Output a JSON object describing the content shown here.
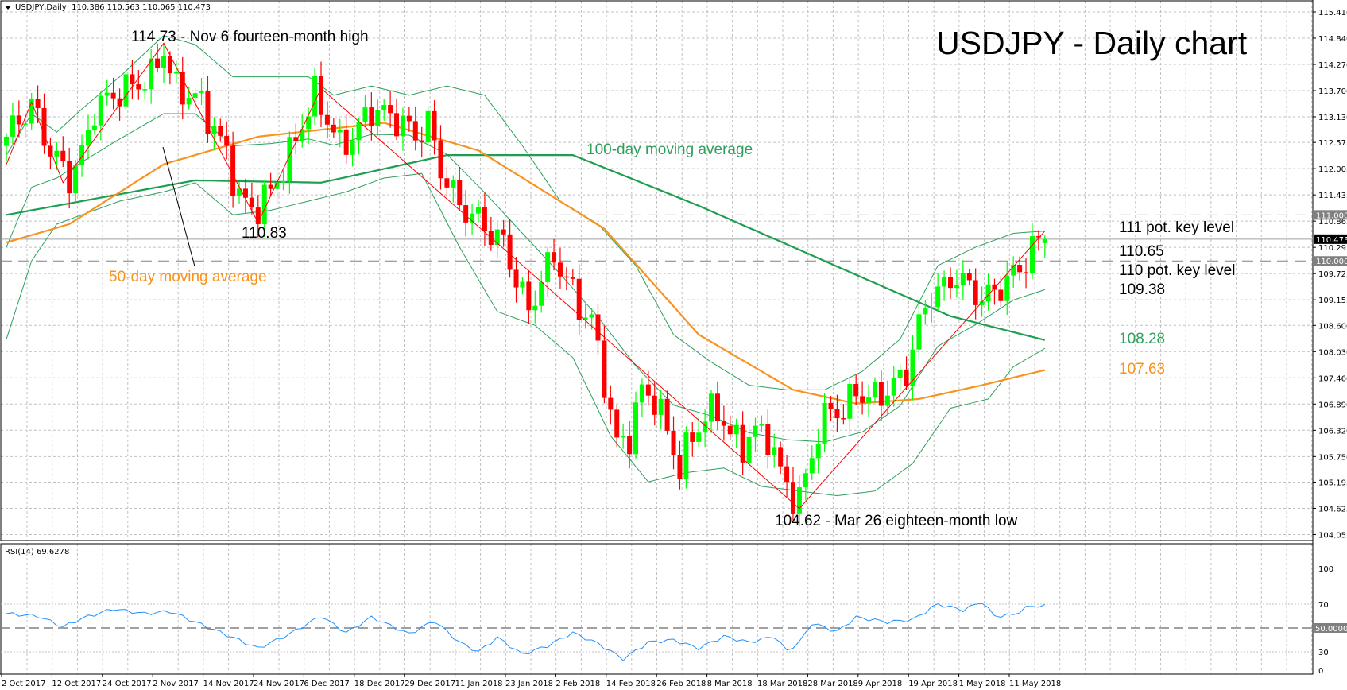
{
  "header": {
    "symbol": "USDJPY,Daily",
    "ohlc": "110.386 110.563 110.065 110.473"
  },
  "rsi_header": "RSI(14) 69.6278",
  "annotations": {
    "title": "USDJPY - Daily chart",
    "high": "114.73 - Nov 6 fourteen-month high",
    "low": "104.62 - Mar 26 eighteen-month low",
    "swing_low": "110.83",
    "ma100_label": "100-day moving average",
    "ma50_label": "50-day moving average",
    "key111": "111 pot. key level",
    "bb_upper": "110.65",
    "key110": "110 pot. key level",
    "bb_mid": "109.38",
    "ma100_value": "108.28",
    "ma50_value": "107.63"
  },
  "colors": {
    "up": "#00ff00",
    "down": "#ff0000",
    "bb": "#2ca05a",
    "ma100": "#1e9e50",
    "ma50": "#f7931e",
    "rsi": "#1e90ff",
    "zigzag": "#ff0000",
    "grid": "#c0c0c0"
  },
  "chart_data": {
    "type": "candlestick",
    "title": "USDJPY - Daily chart",
    "ylim": [
      104.055,
      115.41
    ],
    "y_ticks": [
      "115.410",
      "114.840",
      "114.270",
      "113.700",
      "113.130",
      "112.575",
      "112.005",
      "111.435",
      "110.865",
      "110.295",
      "109.725",
      "109.155",
      "108.600",
      "108.030",
      "107.460",
      "106.890",
      "106.320",
      "105.750",
      "105.195",
      "104.625",
      "104.055"
    ],
    "x_ticks": [
      "2 Oct 2017",
      "12 Oct 2017",
      "24 Oct 2017",
      "2 Nov 2017",
      "14 Nov 2017",
      "24 Nov 2017",
      "6 Dec 2017",
      "18 Dec 2017",
      "29 Dec 2017",
      "11 Jan 2018",
      "23 Jan 2018",
      "2 Feb 2018",
      "14 Feb 2018",
      "26 Feb 2018",
      "8 Mar 2018",
      "18 Mar 2018",
      "28 Mar 2018",
      "9 Apr 2018",
      "19 Apr 2018",
      "1 May 2018",
      "11 May 2018"
    ],
    "bars": 166,
    "close_anchors": [
      [
        0,
        112.7
      ],
      [
        4,
        113.4
      ],
      [
        7,
        112.4
      ],
      [
        10,
        111.8
      ],
      [
        12,
        112.3
      ],
      [
        14,
        113.3
      ],
      [
        17,
        113.6
      ],
      [
        20,
        113.8
      ],
      [
        23,
        114.0
      ],
      [
        25,
        114.6
      ],
      [
        27,
        113.7
      ],
      [
        30,
        113.6
      ],
      [
        33,
        112.9
      ],
      [
        35,
        112.3
      ],
      [
        37,
        111.4
      ],
      [
        39,
        111.1
      ],
      [
        40,
        111.2
      ],
      [
        42,
        111.5
      ],
      [
        45,
        112.3
      ],
      [
        47,
        113.0
      ],
      [
        49,
        113.6
      ],
      [
        51,
        113.1
      ],
      [
        53,
        112.5
      ],
      [
        55,
        112.7
      ],
      [
        58,
        113.3
      ],
      [
        60,
        113.2
      ],
      [
        63,
        113.0
      ],
      [
        65,
        112.7
      ],
      [
        67,
        113.0
      ],
      [
        69,
        112.0
      ],
      [
        72,
        111.2
      ],
      [
        75,
        110.9
      ],
      [
        77,
        110.6
      ],
      [
        79,
        110.4
      ],
      [
        81,
        109.6
      ],
      [
        83,
        108.9
      ],
      [
        85,
        109.6
      ],
      [
        87,
        110.1
      ],
      [
        89,
        109.6
      ],
      [
        91,
        109.0
      ],
      [
        93,
        108.7
      ],
      [
        95,
        107.4
      ],
      [
        97,
        106.0
      ],
      [
        99,
        106.2
      ],
      [
        101,
        107.2
      ],
      [
        103,
        107.0
      ],
      [
        105,
        106.3
      ],
      [
        107,
        105.5
      ],
      [
        109,
        106.2
      ],
      [
        111,
        106.6
      ],
      [
        113,
        106.8
      ],
      [
        115,
        106.2
      ],
      [
        117,
        106.0
      ],
      [
        119,
        106.3
      ],
      [
        121,
        106.2
      ],
      [
        123,
        105.4
      ],
      [
        125,
        104.9
      ],
      [
        126,
        104.8
      ],
      [
        127,
        105.3
      ],
      [
        129,
        106.3
      ],
      [
        131,
        106.8
      ],
      [
        133,
        106.7
      ],
      [
        135,
        107.2
      ],
      [
        137,
        107.0
      ],
      [
        139,
        107.1
      ],
      [
        141,
        107.3
      ],
      [
        143,
        107.6
      ],
      [
        145,
        108.6
      ],
      [
        147,
        109.3
      ],
      [
        149,
        109.4
      ],
      [
        151,
        109.7
      ],
      [
        153,
        109.4
      ],
      [
        155,
        109.2
      ],
      [
        157,
        109.3
      ],
      [
        159,
        109.6
      ],
      [
        161,
        109.8
      ],
      [
        163,
        110.3
      ],
      [
        165,
        110.473
      ]
    ],
    "last_candle": {
      "open": 110.386,
      "high": 110.563,
      "low": 110.065,
      "close": 110.473
    },
    "ma100": [
      [
        0,
        111.0
      ],
      [
        30,
        111.75
      ],
      [
        50,
        111.7
      ],
      [
        70,
        112.3
      ],
      [
        90,
        112.3
      ],
      [
        110,
        111.2
      ],
      [
        130,
        110.0
      ],
      [
        150,
        108.8
      ],
      [
        165,
        108.28
      ]
    ],
    "ma50": [
      [
        0,
        110.4
      ],
      [
        10,
        110.8
      ],
      [
        25,
        112.1
      ],
      [
        40,
        112.7
      ],
      [
        60,
        113.0
      ],
      [
        75,
        112.4
      ],
      [
        95,
        110.7
      ],
      [
        110,
        108.4
      ],
      [
        125,
        107.2
      ],
      [
        135,
        106.9
      ],
      [
        145,
        107.0
      ],
      [
        155,
        107.3
      ],
      [
        165,
        107.63
      ]
    ],
    "bb_upper": [
      [
        0,
        112.3
      ],
      [
        4,
        113.2
      ],
      [
        8,
        112.8
      ],
      [
        12,
        113.3
      ],
      [
        18,
        114.0
      ],
      [
        25,
        114.9
      ],
      [
        30,
        114.7
      ],
      [
        36,
        114.0
      ],
      [
        42,
        114.0
      ],
      [
        48,
        114.0
      ],
      [
        52,
        113.6
      ],
      [
        58,
        113.8
      ],
      [
        64,
        113.6
      ],
      [
        70,
        113.8
      ],
      [
        76,
        113.6
      ],
      [
        82,
        112.5
      ],
      [
        88,
        111.3
      ],
      [
        94,
        110.8
      ],
      [
        100,
        109.9
      ],
      [
        106,
        108.4
      ],
      [
        112,
        107.8
      ],
      [
        118,
        107.3
      ],
      [
        124,
        107.2
      ],
      [
        130,
        107.2
      ],
      [
        136,
        107.6
      ],
      [
        142,
        108.3
      ],
      [
        148,
        109.9
      ],
      [
        154,
        110.3
      ],
      [
        160,
        110.6
      ],
      [
        165,
        110.65
      ]
    ],
    "bb_lower": [
      [
        0,
        108.3
      ],
      [
        4,
        110.0
      ],
      [
        8,
        110.8
      ],
      [
        12,
        111.0
      ],
      [
        18,
        111.3
      ],
      [
        25,
        111.5
      ],
      [
        30,
        111.7
      ],
      [
        36,
        111.0
      ],
      [
        42,
        111.1
      ],
      [
        48,
        111.3
      ],
      [
        54,
        111.5
      ],
      [
        60,
        111.8
      ],
      [
        66,
        111.9
      ],
      [
        72,
        110.3
      ],
      [
        78,
        108.9
      ],
      [
        84,
        108.6
      ],
      [
        90,
        107.9
      ],
      [
        96,
        106.2
      ],
      [
        102,
        105.2
      ],
      [
        108,
        105.4
      ],
      [
        114,
        105.5
      ],
      [
        120,
        105.1
      ],
      [
        126,
        105.0
      ],
      [
        132,
        104.9
      ],
      [
        138,
        105.0
      ],
      [
        144,
        105.6
      ],
      [
        150,
        106.8
      ],
      [
        156,
        107.0
      ],
      [
        160,
        107.7
      ],
      [
        165,
        108.1
      ]
    ],
    "zigzag": [
      [
        0,
        112.1
      ],
      [
        4,
        113.45
      ],
      [
        9,
        111.7
      ],
      [
        25,
        114.73
      ],
      [
        40,
        110.83
      ],
      [
        50,
        113.75
      ],
      [
        126,
        104.62
      ],
      [
        165,
        110.65
      ]
    ],
    "levels": [
      {
        "value": 111.0,
        "label": "111.000",
        "style": "dashed"
      },
      {
        "value": 110.0,
        "label": "110.000",
        "style": "dashed"
      },
      {
        "value": 110.473,
        "label": "110.473",
        "style": "current"
      }
    ],
    "rsi": {
      "period": 14,
      "ylim": [
        0,
        100
      ],
      "ticks": [
        "100",
        "70",
        "30",
        "0"
      ],
      "level_label": "50.0000",
      "anchors": [
        [
          0,
          62
        ],
        [
          5,
          60
        ],
        [
          9,
          51
        ],
        [
          12,
          58
        ],
        [
          17,
          66
        ],
        [
          22,
          62
        ],
        [
          26,
          64
        ],
        [
          30,
          55
        ],
        [
          36,
          42
        ],
        [
          40,
          33
        ],
        [
          45,
          45
        ],
        [
          50,
          60
        ],
        [
          54,
          46
        ],
        [
          58,
          59
        ],
        [
          64,
          45
        ],
        [
          68,
          56
        ],
        [
          72,
          38
        ],
        [
          75,
          30
        ],
        [
          78,
          42
        ],
        [
          82,
          28
        ],
        [
          86,
          35
        ],
        [
          90,
          46
        ],
        [
          94,
          37
        ],
        [
          98,
          24
        ],
        [
          102,
          38
        ],
        [
          106,
          40
        ],
        [
          110,
          33
        ],
        [
          114,
          43
        ],
        [
          118,
          38
        ],
        [
          122,
          43
        ],
        [
          124,
          31
        ],
        [
          126,
          38
        ],
        [
          128,
          54
        ],
        [
          132,
          47
        ],
        [
          135,
          59
        ],
        [
          140,
          55
        ],
        [
          144,
          57
        ],
        [
          148,
          70
        ],
        [
          152,
          65
        ],
        [
          155,
          72
        ],
        [
          157,
          60
        ],
        [
          160,
          61
        ],
        [
          162,
          67
        ],
        [
          165,
          69.63
        ]
      ]
    }
  }
}
